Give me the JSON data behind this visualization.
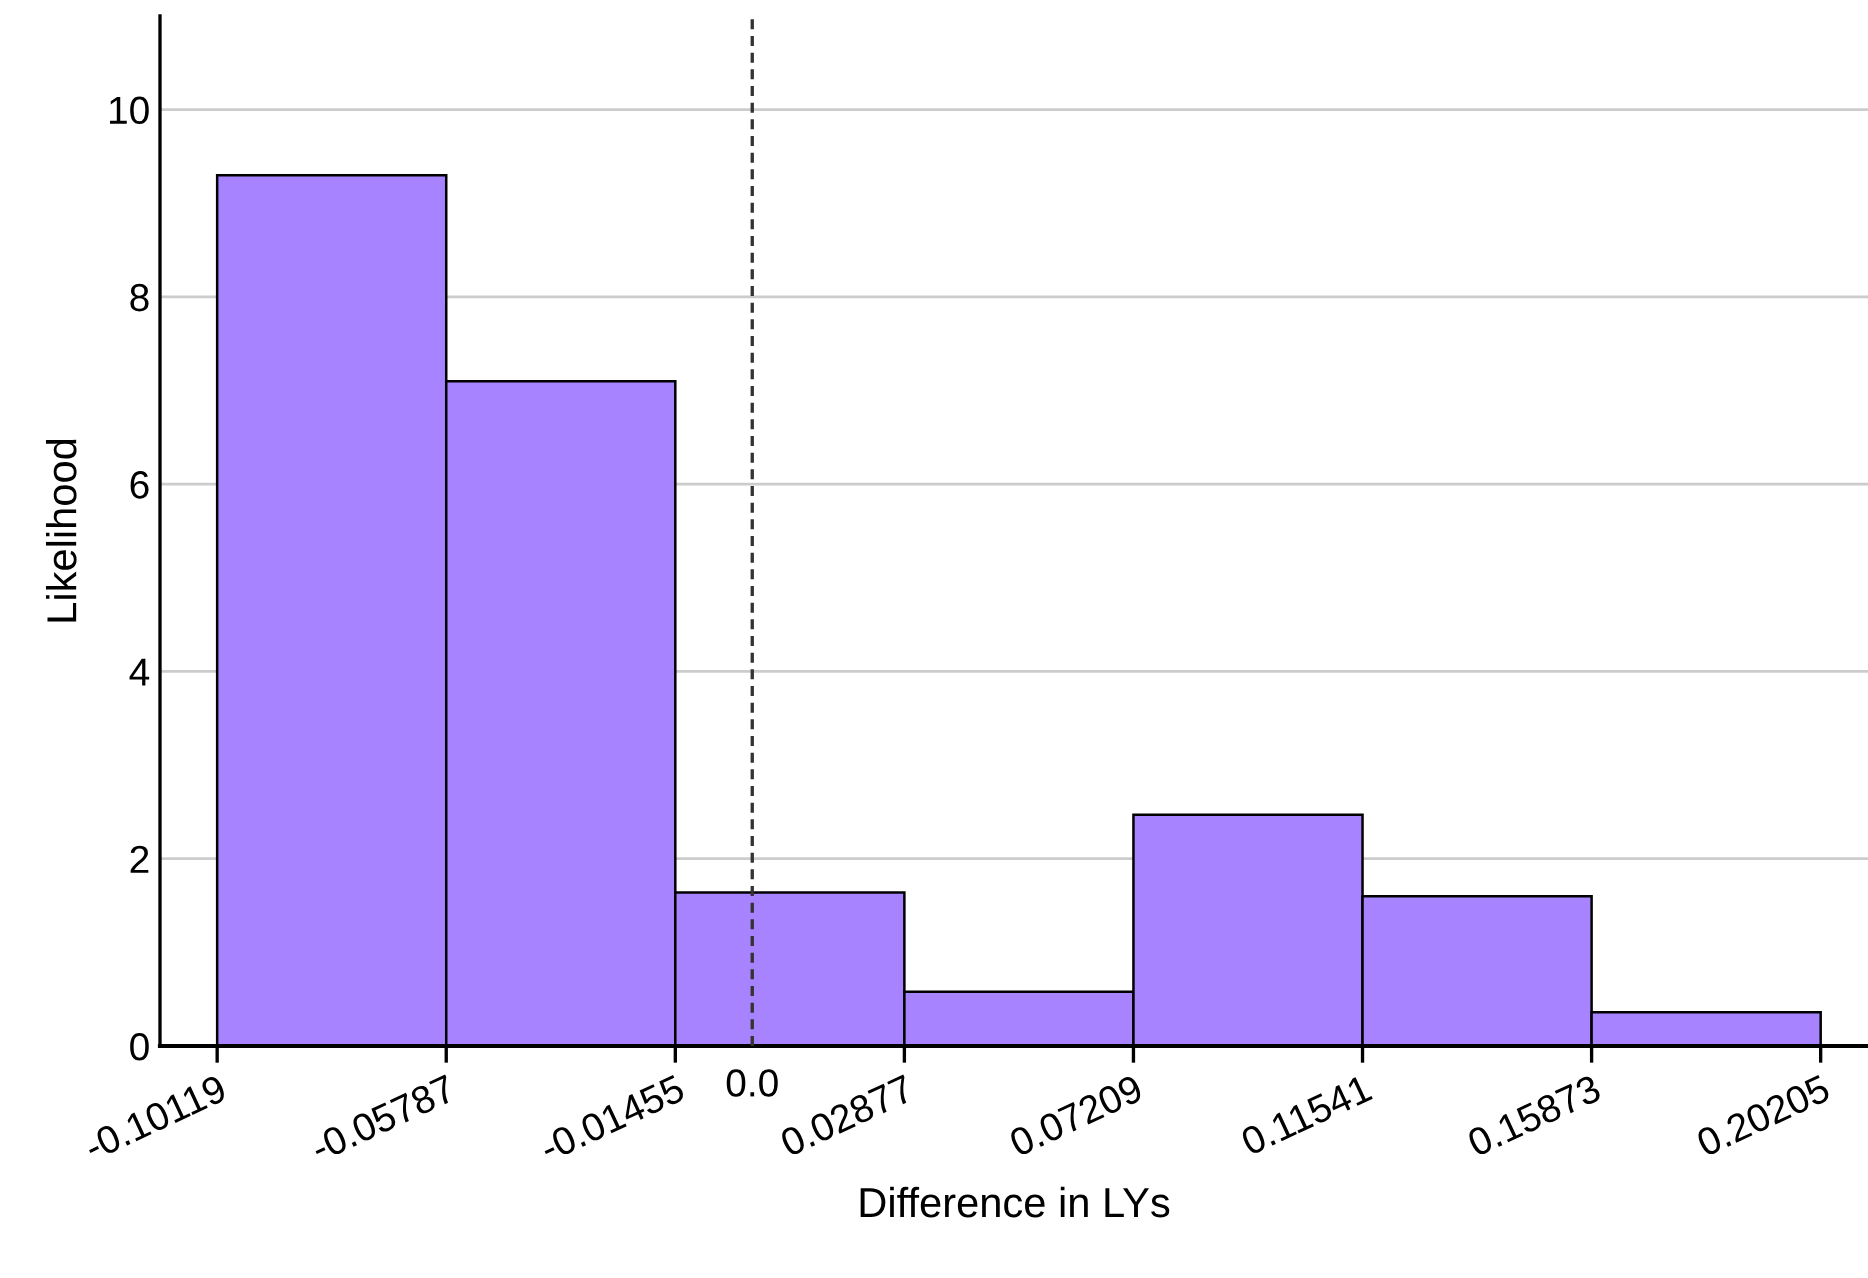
{
  "chart_data": {
    "type": "histogram",
    "xlabel": "Difference in LYs",
    "ylabel": "Likelihood",
    "bins": [
      -0.10119,
      -0.05787,
      -0.01455,
      0.02877,
      0.07209,
      0.11541,
      0.15873,
      0.20205
    ],
    "values": [
      9.3,
      7.1,
      1.64,
      0.58,
      2.47,
      1.6,
      0.36
    ],
    "color": "#a883ff",
    "xlim": [
      -0.112,
      0.211
    ],
    "xticks": [
      -0.10119,
      -0.05787,
      -0.01455,
      0.02877,
      0.07209,
      0.11541,
      0.15873,
      0.20205
    ],
    "ylim": [
      0,
      11
    ],
    "yticks": [
      0,
      2,
      4,
      6,
      8,
      10
    ],
    "grid": "y",
    "ref_lines": [
      {
        "axis": "x",
        "value": 0.0,
        "label": "0.0",
        "line_style": "dashed",
        "color": "#333333"
      }
    ]
  }
}
